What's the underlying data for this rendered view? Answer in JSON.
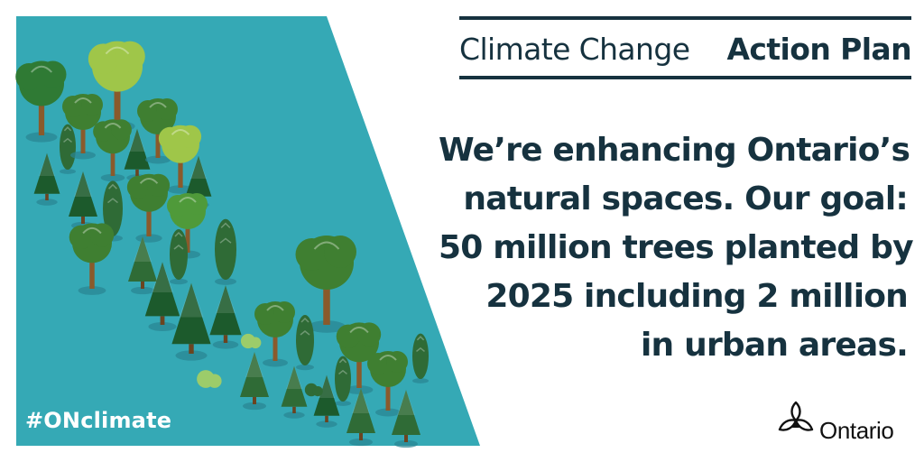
{
  "header": {
    "title_light": "Climate Change",
    "title_bold": "Action Plan"
  },
  "message": {
    "lines": [
      "We’re enhancing Ontario’s",
      "natural spaces. Our goal:",
      "50 million trees planted by",
      "2025 including 2 million",
      "in urban areas."
    ]
  },
  "hashtag": "#ONclimate",
  "logo": {
    "text": "Ontario",
    "icon": "trillium-icon"
  },
  "colors": {
    "panel_teal": "#35a9b5",
    "text_navy": "#16323f",
    "white": "#ffffff",
    "tree_dark": "#1c5a2c",
    "tree_mid": "#3f7f31",
    "tree_light": "#9fc649"
  }
}
